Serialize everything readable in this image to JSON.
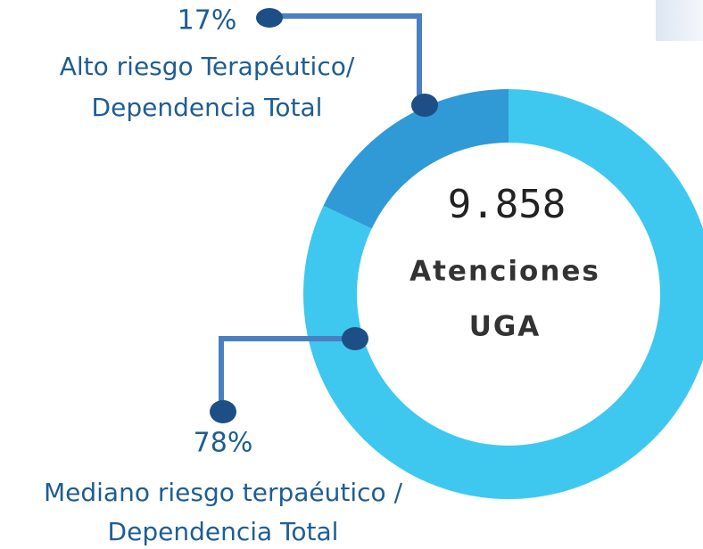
{
  "chart_data": {
    "type": "donut",
    "categories": [
      [
        "Mediano riesgo terpaéutico /",
        "Dependencia Total"
      ],
      [
        "Alto riesgo Terapéutico/",
        "Dependencia Total"
      ]
    ],
    "values": [
      78,
      17
    ],
    "value_labels": [
      "78%",
      "17%"
    ],
    "colors": [
      "#3ec8ef",
      "#2f9ad5"
    ],
    "center_value": "9.858",
    "center_label": [
      "Atenciones",
      "UGA"
    ]
  }
}
